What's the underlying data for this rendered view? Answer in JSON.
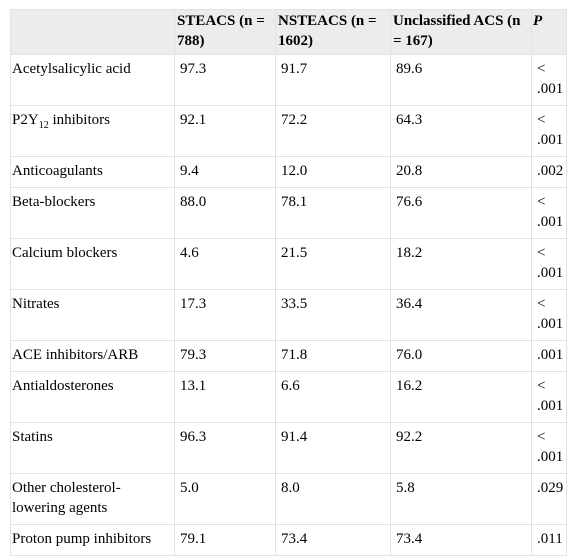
{
  "table": {
    "headers": [
      "",
      "STEACS (n = 788)",
      "NSTEACS (n = 1602)",
      "Unclassified ACS (n = 167)",
      "P"
    ],
    "rows": [
      {
        "drug": "Acetylsalicylic acid",
        "steacs": "97.3",
        "nsteacs": "91.7",
        "unclassified": "89.6",
        "p": "< .001"
      },
      {
        "drug_prefix": "P2Y",
        "drug_sub": "12",
        "drug_suffix": " inhibitors",
        "steacs": "92.1",
        "nsteacs": "72.2",
        "unclassified": "64.3",
        "p": "< .001"
      },
      {
        "drug": "Anticoagulants",
        "steacs": "9.4",
        "nsteacs": "12.0",
        "unclassified": "20.8",
        "p": ".002"
      },
      {
        "drug": "Beta-blockers",
        "steacs": "88.0",
        "nsteacs": "78.1",
        "unclassified": "76.6",
        "p": "< .001"
      },
      {
        "drug": "Calcium blockers",
        "steacs": "4.6",
        "nsteacs": "21.5",
        "unclassified": "18.2",
        "p": "< .001"
      },
      {
        "drug": "Nitrates",
        "steacs": "17.3",
        "nsteacs": "33.5",
        "unclassified": "36.4",
        "p": "< .001"
      },
      {
        "drug": "ACE inhibitors/ARB",
        "steacs": "79.3",
        "nsteacs": "71.8",
        "unclassified": "76.0",
        "p": ".001"
      },
      {
        "drug": "Antialdosterones",
        "steacs": "13.1",
        "nsteacs": "6.6",
        "unclassified": "16.2",
        "p": "< .001"
      },
      {
        "drug": "Statins",
        "steacs": "96.3",
        "nsteacs": "91.4",
        "unclassified": "92.2",
        "p": "< .001"
      },
      {
        "drug": "Other cholesterol-lowering agents",
        "steacs": "5.0",
        "nsteacs": "8.0",
        "unclassified": "5.8",
        "p": ".029"
      },
      {
        "drug": "Proton pump inhibitors",
        "steacs": "79.1",
        "nsteacs": "73.4",
        "unclassified": "73.4",
        "p": ".011"
      }
    ]
  }
}
